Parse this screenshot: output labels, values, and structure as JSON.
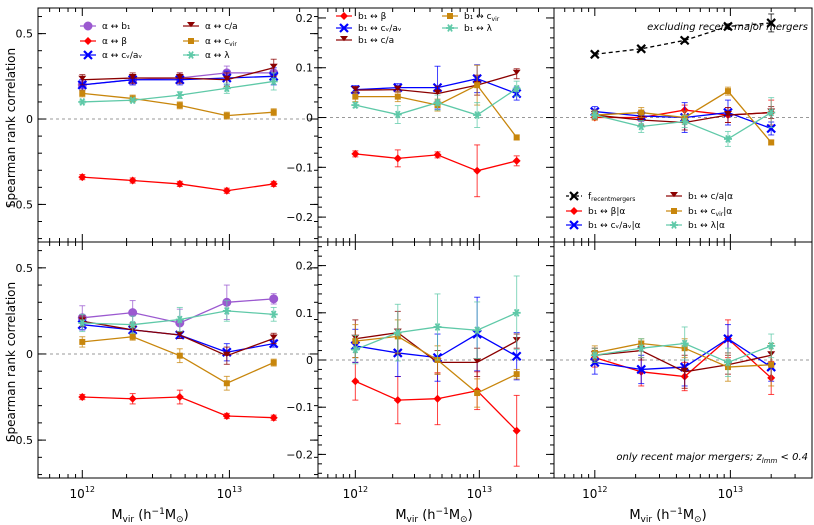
{
  "figure": {
    "ylabel": "Spearman rank correlation",
    "xlabel": "M",
    "xlabel_sub": "vir",
    "xlabel_units": "(h",
    "xlabel_exp": "−1",
    "xlabel_tail": "M",
    "xlabel_sun": "⊙",
    "xlabel_close": ")",
    "note_top_right": "excluding recent major mergers",
    "note_bottom_right_prefix": "only recent major mergers; z",
    "note_bottom_right_sub": "lmm",
    "note_bottom_right_suffix": " < 0.4"
  },
  "chart_data": [
    {
      "type": "line",
      "panel": "top-left",
      "x": [
        1000000000000.0,
        2200000000000.0,
        4600000000000.0,
        9600000000000.0,
        20000000000000.0
      ],
      "xscale": "log",
      "xlim": [
        500000000000.0,
        40000000000000.0
      ],
      "xtick_labels": [
        {
          "value": 1000000000000.0,
          "mant": "10",
          "exp": "12"
        },
        {
          "value": 10000000000000.0,
          "mant": "10",
          "exp": "13"
        }
      ],
      "ylim": [
        -0.72,
        0.65
      ],
      "yticks": [
        -0.5,
        0.0,
        0.5
      ],
      "ytick_labels": [
        "−0.5",
        "0",
        "0.5"
      ],
      "legend": "top",
      "series": [
        {
          "key": "alpha_b1",
          "name": "α ↔ b₁",
          "color": "#9b59d0",
          "marker": "circle",
          "values": [
            0.2,
            0.23,
            0.24,
            0.27,
            0.27
          ],
          "errors": [
            0.03,
            0.03,
            0.03,
            0.04,
            0.05
          ]
        },
        {
          "key": "alpha_beta",
          "name": "α ↔ β",
          "color": "#ff0000",
          "marker": "diamond",
          "values": [
            -0.34,
            -0.36,
            -0.38,
            -0.42,
            -0.38
          ],
          "errors": [
            0.015,
            0.015,
            0.015,
            0.015,
            0.015
          ]
        },
        {
          "key": "alpha_cv",
          "name": "α ↔ cᵥ/aᵥ",
          "color": "#0000ff",
          "marker": "x",
          "values": [
            0.2,
            0.23,
            0.23,
            0.24,
            0.25
          ],
          "errors": [
            0.03,
            0.03,
            0.03,
            0.04,
            0.05
          ]
        },
        {
          "key": "alpha_ca",
          "name": "α ↔ c/a",
          "color": "#8b0000",
          "marker": "tri",
          "values": [
            0.23,
            0.24,
            0.24,
            0.23,
            0.3
          ],
          "errors": [
            0.03,
            0.03,
            0.03,
            0.04,
            0.05
          ]
        },
        {
          "key": "alpha_cvir",
          "name": "α ↔ c",
          "sub": "vir",
          "color": "#c8860c",
          "marker": "square",
          "values": [
            0.15,
            0.12,
            0.08,
            0.02,
            0.04
          ],
          "errors": [
            0.02,
            0.02,
            0.02,
            0.02,
            0.02
          ]
        },
        {
          "key": "alpha_lambda",
          "name": "α ↔ λ",
          "color": "#5fc9a8",
          "marker": "star",
          "values": [
            0.1,
            0.11,
            0.14,
            0.18,
            0.22
          ],
          "errors": [
            0.01,
            0.01,
            0.02,
            0.03,
            0.05
          ]
        }
      ]
    },
    {
      "type": "line",
      "panel": "top-middle",
      "x": [
        1000000000000.0,
        2200000000000.0,
        4600000000000.0,
        9600000000000.0,
        20000000000000.0
      ],
      "xscale": "log",
      "xlim": [
        500000000000.0,
        40000000000000.0
      ],
      "xtick_labels": [
        {
          "value": 1000000000000.0,
          "mant": "10",
          "exp": "12"
        },
        {
          "value": 10000000000000.0,
          "mant": "10",
          "exp": "13"
        }
      ],
      "ylim": [
        -0.25,
        0.22
      ],
      "yticks": [
        -0.2,
        -0.1,
        0.0,
        0.1,
        0.2
      ],
      "ytick_labels": [
        "−0.2",
        "−0.1",
        "0",
        "0.1",
        "0.2"
      ],
      "legend": "top",
      "series": [
        {
          "key": "b1_beta",
          "name": "b₁ ↔ β",
          "color": "#ff0000",
          "marker": "diamond",
          "values": [
            -0.073,
            -0.082,
            -0.075,
            -0.107,
            -0.087
          ],
          "errors": [
            0.006,
            0.017,
            0.006,
            0.052,
            0.01
          ]
        },
        {
          "key": "b1_cv",
          "name": "b₁ ↔ cᵥ/aᵥ",
          "color": "#0000ff",
          "marker": "x",
          "values": [
            0.056,
            0.06,
            0.06,
            0.078,
            0.048
          ],
          "errors": [
            0.008,
            0.008,
            0.043,
            0.028,
            0.013
          ]
        },
        {
          "key": "b1_ca",
          "name": "b₁ ↔ c/a",
          "color": "#8b0000",
          "marker": "tri",
          "values": [
            0.055,
            0.056,
            0.048,
            0.065,
            0.088
          ],
          "errors": [
            0.005,
            0.005,
            0.015,
            0.02,
            0.01
          ]
        },
        {
          "key": "b1_cvir",
          "name": "b₁ ↔ c",
          "sub": "vir",
          "color": "#c8860c",
          "marker": "square",
          "values": [
            0.042,
            0.042,
            0.025,
            0.065,
            -0.04
          ],
          "errors": [
            0.01,
            0.01,
            0.012,
            0.04,
            0.005
          ]
        },
        {
          "key": "b1_lambda",
          "name": "b₁ ↔ λ",
          "color": "#5fc9a8",
          "marker": "star",
          "values": [
            0.025,
            0.006,
            0.03,
            0.005,
            0.058
          ],
          "errors": [
            0.005,
            0.018,
            0.015,
            0.025,
            0.015
          ]
        }
      ]
    },
    {
      "type": "line",
      "panel": "top-right",
      "x": [
        1000000000000.0,
        2200000000000.0,
        4600000000000.0,
        9600000000000.0,
        20000000000000.0
      ],
      "xscale": "log",
      "xlim": [
        500000000000.0,
        40000000000000.0
      ],
      "xtick_labels": [
        {
          "value": 1000000000000.0,
          "mant": "10",
          "exp": "12"
        },
        {
          "value": 10000000000000.0,
          "mant": "10",
          "exp": "13"
        }
      ],
      "ylim": [
        -0.25,
        0.22
      ],
      "legend": "bottom",
      "series": [
        {
          "key": "f_recent",
          "name": "f",
          "sub": "recentmergers",
          "color": "#000000",
          "marker": "x",
          "dashed": true,
          "values": [
            0.127,
            0.138,
            0.155,
            0.183,
            0.19
          ],
          "errors": [
            0.003,
            0.003,
            0.004,
            0.005,
            0.018
          ]
        },
        {
          "key": "b1_beta_a",
          "name": "b₁ ↔ β|α",
          "color": "#ff0000",
          "marker": "diamond",
          "values": [
            0.0,
            0.0,
            0.015,
            0.005,
            0.01
          ],
          "errors": [
            0.005,
            0.007,
            0.01,
            0.015,
            0.025
          ]
        },
        {
          "key": "b1_cv_a",
          "name": "b₁ ↔ cᵥ/aᵥ|α",
          "color": "#0000ff",
          "marker": "x",
          "values": [
            0.012,
            0.003,
            0.0,
            0.01,
            -0.022
          ],
          "errors": [
            0.01,
            0.01,
            0.03,
            0.025,
            0.013
          ]
        },
        {
          "key": "b1_ca_a",
          "name": "b₁ ↔ c/a|α",
          "color": "#8b0000",
          "marker": "tri",
          "values": [
            0.005,
            -0.005,
            -0.01,
            0.005,
            0.01
          ],
          "errors": [
            0.008,
            0.01,
            0.015,
            0.015,
            0.012
          ]
        },
        {
          "key": "b1_cvir_a",
          "name": "b₁ ↔ c",
          "sub": "vir",
          "tail": "|α",
          "color": "#c8860c",
          "marker": "square",
          "values": [
            0.005,
            0.01,
            0.0,
            0.053,
            -0.05
          ],
          "errors": [
            0.01,
            0.01,
            0.013,
            0.008,
            0.005
          ]
        },
        {
          "key": "b1_lambda_a",
          "name": "b₁ ↔ λ|α",
          "color": "#5fc9a8",
          "marker": "star",
          "values": [
            0.005,
            -0.018,
            -0.008,
            -0.043,
            0.01
          ],
          "errors": [
            0.008,
            0.012,
            0.012,
            0.015,
            0.03
          ]
        }
      ]
    },
    {
      "type": "line",
      "panel": "bottom-left",
      "x": [
        1000000000000.0,
        2200000000000.0,
        4600000000000.0,
        9600000000000.0,
        20000000000000.0
      ],
      "xscale": "log",
      "xlim": [
        500000000000.0,
        40000000000000.0
      ],
      "xtick_labels": [
        {
          "value": 1000000000000.0,
          "mant": "10",
          "exp": "12"
        },
        {
          "value": 10000000000000.0,
          "mant": "10",
          "exp": "13"
        }
      ],
      "ylim": [
        -0.72,
        0.65
      ],
      "yticks": [
        -0.5,
        0.0,
        0.5
      ],
      "ytick_labels": [
        "−0.5",
        "0",
        "0.5"
      ],
      "series": [
        {
          "key": "alpha_b1",
          "color": "#9b59d0",
          "marker": "circle",
          "values": [
            0.21,
            0.24,
            0.18,
            0.3,
            0.32
          ],
          "errors": [
            0.07,
            0.07,
            0.08,
            0.1,
            0.03
          ]
        },
        {
          "key": "alpha_beta",
          "color": "#ff0000",
          "marker": "diamond",
          "values": [
            -0.25,
            -0.26,
            -0.25,
            -0.36,
            -0.37
          ],
          "errors": [
            0.015,
            0.03,
            0.04,
            0.015,
            0.015
          ]
        },
        {
          "key": "alpha_cv",
          "color": "#0000ff",
          "marker": "x",
          "values": [
            0.17,
            0.14,
            0.11,
            0.01,
            0.06
          ],
          "errors": [
            0.03,
            0.04,
            0.02,
            0.05,
            0.02
          ]
        },
        {
          "key": "alpha_ca",
          "color": "#8b0000",
          "marker": "tri",
          "values": [
            0.19,
            0.14,
            0.11,
            -0.01,
            0.09
          ],
          "errors": [
            0.03,
            0.04,
            0.02,
            0.05,
            0.03
          ]
        },
        {
          "key": "alpha_cvir",
          "color": "#c8860c",
          "marker": "square",
          "values": [
            0.07,
            0.1,
            -0.01,
            -0.17,
            -0.05
          ],
          "errors": [
            0.03,
            0.02,
            0.04,
            0.04,
            0.02
          ]
        },
        {
          "key": "alpha_lambda",
          "color": "#5fc9a8",
          "marker": "star",
          "values": [
            0.18,
            0.17,
            0.2,
            0.25,
            0.23
          ],
          "errors": [
            0.05,
            0.05,
            0.07,
            0.06,
            0.04
          ]
        }
      ]
    },
    {
      "type": "line",
      "panel": "bottom-middle",
      "x": [
        1000000000000.0,
        2200000000000.0,
        4600000000000.0,
        9600000000000.0,
        20000000000000.0
      ],
      "xscale": "log",
      "xlim": [
        500000000000.0,
        40000000000000.0
      ],
      "xtick_labels": [
        {
          "value": 1000000000000.0,
          "mant": "10",
          "exp": "12"
        },
        {
          "value": 10000000000000.0,
          "mant": "10",
          "exp": "13"
        }
      ],
      "ylim": [
        -0.25,
        0.25
      ],
      "yticks": [
        -0.2,
        -0.1,
        0.0,
        0.1,
        0.2
      ],
      "ytick_labels": [
        "−0.2",
        "−0.1",
        "0",
        "0.1",
        "0.2"
      ],
      "series": [
        {
          "key": "b1_beta",
          "color": "#ff0000",
          "marker": "diamond",
          "values": [
            -0.045,
            -0.085,
            -0.082,
            -0.065,
            -0.15
          ],
          "errors": [
            0.04,
            0.05,
            0.055,
            0.04,
            0.075
          ]
        },
        {
          "key": "b1_cv",
          "color": "#0000ff",
          "marker": "x",
          "values": [
            0.03,
            0.015,
            0.005,
            0.055,
            0.008
          ],
          "errors": [
            0.035,
            0.05,
            0.05,
            0.078,
            0.05
          ]
        },
        {
          "key": "b1_ca",
          "color": "#8b0000",
          "marker": "tri",
          "values": [
            0.045,
            0.058,
            -0.005,
            -0.005,
            0.04
          ],
          "errors": [
            0.04,
            0.045,
            0.025,
            0.03,
            0.015
          ]
        },
        {
          "key": "b1_cvir",
          "color": "#c8860c",
          "marker": "square",
          "values": [
            0.04,
            0.05,
            0.0,
            -0.07,
            -0.03
          ],
          "errors": [
            0.035,
            0.035,
            0.03,
            0.03,
            0.01
          ]
        },
        {
          "key": "b1_lambda",
          "color": "#5fc9a8",
          "marker": "star",
          "values": [
            0.022,
            0.058,
            0.07,
            0.063,
            0.1
          ],
          "errors": [
            0.03,
            0.06,
            0.07,
            0.06,
            0.078
          ]
        }
      ]
    },
    {
      "type": "line",
      "panel": "bottom-right",
      "x": [
        1000000000000.0,
        2200000000000.0,
        4600000000000.0,
        9600000000000.0,
        20000000000000.0
      ],
      "xscale": "log",
      "xlim": [
        500000000000.0,
        40000000000000.0
      ],
      "xtick_labels": [
        {
          "value": 1000000000000.0,
          "mant": "10",
          "exp": "12"
        },
        {
          "value": 10000000000000.0,
          "mant": "10",
          "exp": "13"
        }
      ],
      "ylim": [
        -0.25,
        0.25
      ],
      "series": [
        {
          "key": "b1_beta_a",
          "color": "#ff0000",
          "marker": "diamond",
          "values": [
            0.005,
            -0.025,
            -0.035,
            0.045,
            -0.038
          ],
          "errors": [
            0.02,
            0.03,
            0.03,
            0.04,
            0.035
          ]
        },
        {
          "key": "b1_cv_a",
          "color": "#0000ff",
          "marker": "x",
          "values": [
            -0.005,
            -0.02,
            -0.015,
            0.045,
            -0.015
          ],
          "errors": [
            0.025,
            0.03,
            0.04,
            0.03,
            0.03
          ]
        },
        {
          "key": "b1_ca_a",
          "color": "#8b0000",
          "marker": "tri",
          "values": [
            0.01,
            0.02,
            -0.025,
            -0.01,
            0.01
          ],
          "errors": [
            0.015,
            0.02,
            0.035,
            0.02,
            0.025
          ]
        },
        {
          "key": "b1_cvir_a",
          "color": "#c8860c",
          "marker": "square",
          "values": [
            0.015,
            0.035,
            0.025,
            -0.015,
            -0.01
          ],
          "errors": [
            0.015,
            0.01,
            0.02,
            0.03,
            0.045
          ]
        },
        {
          "key": "b1_lambda_a",
          "color": "#5fc9a8",
          "marker": "star",
          "values": [
            0.01,
            0.025,
            0.035,
            -0.005,
            0.03
          ],
          "errors": [
            0.015,
            0.02,
            0.035,
            0.03,
            0.025
          ]
        }
      ]
    }
  ]
}
